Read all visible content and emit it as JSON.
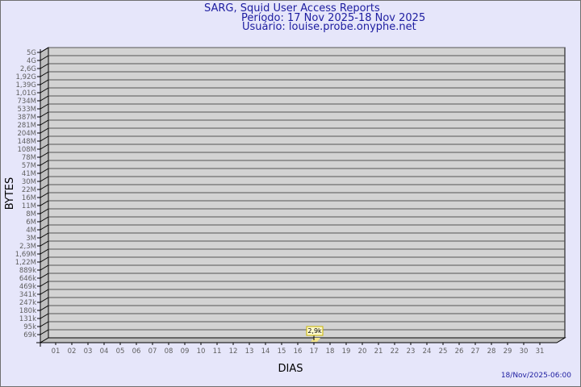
{
  "chart_data": {
    "type": "bar",
    "title": "SARG, Squid User Access Reports",
    "subtitle_period": "Período: 17 Nov 2025-18 Nov 2025",
    "subtitle_user": "Usuário: louise.probe.onyphe.net",
    "xlabel": "DIAS",
    "ylabel": "BYTES",
    "categories": [
      "01",
      "02",
      "03",
      "04",
      "05",
      "06",
      "07",
      "08",
      "09",
      "10",
      "11",
      "12",
      "13",
      "14",
      "15",
      "16",
      "17",
      "18",
      "19",
      "20",
      "21",
      "22",
      "23",
      "24",
      "25",
      "26",
      "27",
      "28",
      "29",
      "30",
      "31"
    ],
    "y_tick_labels": [
      "5G",
      "4G",
      "2,6G",
      "1,92G",
      "1,39G",
      "1,01G",
      "734M",
      "533M",
      "387M",
      "281M",
      "204M",
      "148M",
      "108M",
      "78M",
      "57M",
      "41M",
      "30M",
      "22M",
      "16M",
      "11M",
      "8M",
      "6M",
      "4M",
      "3M",
      "2,3M",
      "1,69M",
      "1,22M",
      "889k",
      "646k",
      "469k",
      "341k",
      "247k",
      "180k",
      "131k",
      "95k",
      "69k"
    ],
    "y_scale": "log",
    "grid": true,
    "series": [
      {
        "values": [
          null,
          null,
          null,
          null,
          null,
          null,
          null,
          null,
          null,
          null,
          null,
          null,
          null,
          null,
          null,
          null,
          2900,
          null,
          null,
          null,
          null,
          null,
          null,
          null,
          null,
          null,
          null,
          null,
          null,
          null,
          null
        ],
        "data_labels": {
          "17": "2,9k"
        }
      }
    ],
    "colors": {
      "wall": "#d3d3d3",
      "side": "#bfbfbf",
      "bar": "#f5e68c",
      "label_bg": "#fffacd",
      "text": "#1c1ca0",
      "tick_text": "#606060"
    }
  },
  "footer": {
    "timestamp": "18/Nov/2025-06:00"
  }
}
